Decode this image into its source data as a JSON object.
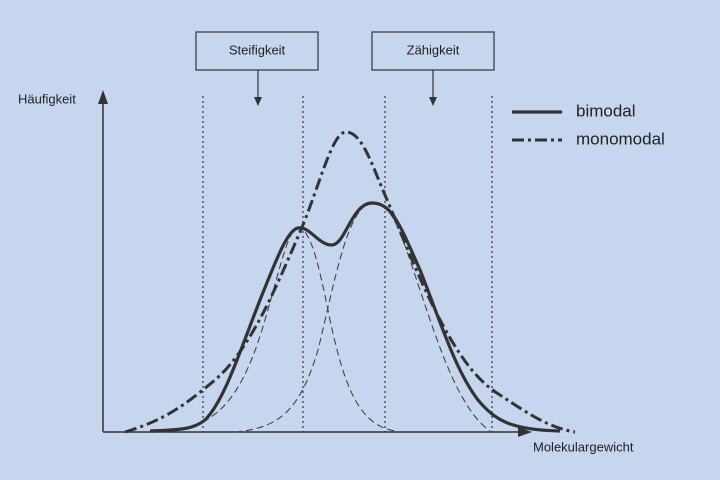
{
  "labels": {
    "y_axis": "Häufigkeit",
    "x_axis": "Molekulargewicht",
    "box_left": "Steifigkeit",
    "box_right": "Zähigkeit"
  },
  "legend": [
    "bimodal",
    "monomodal"
  ]
}
